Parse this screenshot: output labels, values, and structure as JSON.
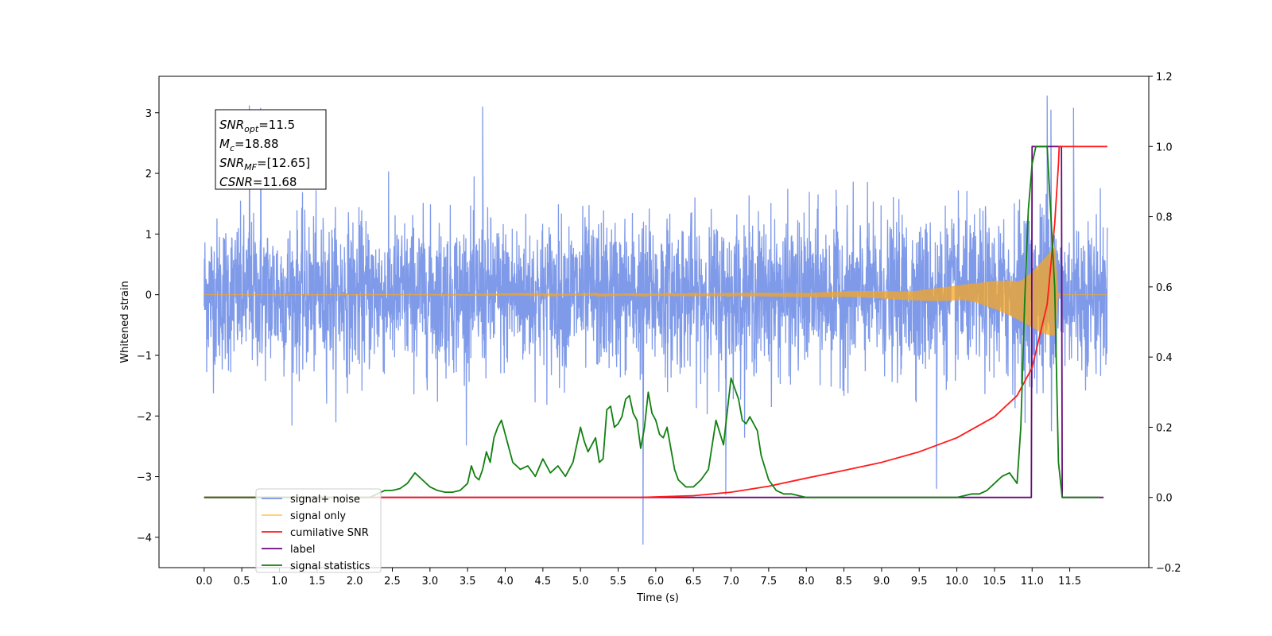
{
  "chart_data": {
    "type": "line",
    "xlabel": "Time (s)",
    "ylabel": "Whitened strain",
    "xlim": [
      -0.6,
      12.55
    ],
    "ylim": [
      -4.5,
      3.6
    ],
    "y2lim": [
      -0.2,
      1.2
    ],
    "x_ticks": [
      0.0,
      0.5,
      1.0,
      1.5,
      2.0,
      2.5,
      3.0,
      3.5,
      4.0,
      4.5,
      5.0,
      5.5,
      6.0,
      6.5,
      7.0,
      7.5,
      8.0,
      8.5,
      9.0,
      9.5,
      10.0,
      10.5,
      11.0,
      11.5
    ],
    "x_tick_labels": [
      "0.0",
      "0.5",
      "1.0",
      "1.5",
      "2.0",
      "2.5",
      "3.0",
      "3.5",
      "4.0",
      "4.5",
      "5.0",
      "5.5",
      "6.0",
      "6.5",
      "7.0",
      "7.5",
      "8.0",
      "8.5",
      "9.0",
      "9.5",
      "10.0",
      "10.5",
      "11.0",
      "11.5"
    ],
    "y_ticks": [
      -4,
      -3,
      -2,
      -1,
      0,
      1,
      2,
      3
    ],
    "y_tick_labels": [
      "−4",
      "−3",
      "−2",
      "−1",
      "0",
      "1",
      "2",
      "3"
    ],
    "y2_ticks": [
      -0.2,
      0.0,
      0.2,
      0.4,
      0.6,
      0.8,
      1.0,
      1.2
    ],
    "y2_tick_labels": [
      "−0.2",
      "0.0",
      "0.2",
      "0.4",
      "0.6",
      "0.8",
      "1.0",
      "1.2"
    ],
    "grid": false,
    "legend_position": "lower-left",
    "annotation": [
      {
        "base": "SNR",
        "sub": "opt",
        "value": "=11.5"
      },
      {
        "base": "M",
        "sub": "c",
        "value": "=18.88"
      },
      {
        "base": "SNR",
        "sub": "MF",
        "value": "=[12.65]"
      },
      {
        "base": "CSNR",
        "sub": "",
        "value": "=11.68"
      }
    ],
    "series": [
      {
        "name": "signal+ noise",
        "axis": "left",
        "color": "#7895e8",
        "x_range": [
          0.0,
          12.0
        ],
        "typical_envelope": [
          -1.5,
          1.5
        ],
        "note_points": [
          {
            "x": 0.6,
            "y": 3.12
          },
          {
            "x": 0.75,
            "y": 3.08
          },
          {
            "x": 3.7,
            "y": 3.1
          },
          {
            "x": 5.83,
            "y": -4.12
          },
          {
            "x": 6.93,
            "y": -3.3
          },
          {
            "x": 9.73,
            "y": -3.2
          },
          {
            "x": 11.2,
            "y": 3.28
          },
          {
            "x": 11.25,
            "y": 3.05
          },
          {
            "x": 11.55,
            "y": 3.08
          }
        ]
      },
      {
        "name": "signal only",
        "axis": "left",
        "color": "#f5a623",
        "x": [
          0.0,
          3.0,
          6.0,
          8.0,
          9.0,
          9.5,
          10.0,
          10.3,
          10.6,
          10.8,
          11.0,
          11.1,
          11.2,
          11.3,
          11.35,
          12.0
        ],
        "amplitude": [
          0.0,
          0.005,
          0.02,
          0.04,
          0.07,
          0.1,
          0.15,
          0.2,
          0.3,
          0.4,
          0.55,
          0.65,
          0.75,
          0.85,
          0.0,
          0.0
        ]
      },
      {
        "name": "cumilative SNR",
        "axis": "right",
        "color": "#ff1a1a",
        "x": [
          0.0,
          5.8,
          6.5,
          7.0,
          7.5,
          8.0,
          8.5,
          9.0,
          9.5,
          10.0,
          10.5,
          10.8,
          11.0,
          11.2,
          11.3,
          11.35,
          11.36,
          12.0
        ],
        "values": [
          0.0,
          0.0,
          0.005,
          0.015,
          0.032,
          0.055,
          0.077,
          0.1,
          0.13,
          0.17,
          0.23,
          0.29,
          0.37,
          0.55,
          0.78,
          0.95,
          1.0,
          1.0
        ]
      },
      {
        "name": "label",
        "axis": "right",
        "color": "#6a0a7a",
        "x": [
          0.0,
          10.99,
          11.0,
          11.39,
          11.4,
          11.95
        ],
        "values": [
          0.0,
          0.0,
          1.0,
          1.0,
          0.0,
          0.0
        ]
      },
      {
        "name": "signal statistics",
        "axis": "right",
        "color": "#118011",
        "x": [
          0.0,
          2.0,
          2.2,
          2.3,
          2.4,
          2.5,
          2.6,
          2.7,
          2.8,
          2.9,
          3.0,
          3.1,
          3.2,
          3.3,
          3.4,
          3.5,
          3.55,
          3.6,
          3.65,
          3.7,
          3.75,
          3.8,
          3.85,
          3.9,
          3.95,
          4.0,
          4.1,
          4.2,
          4.3,
          4.4,
          4.5,
          4.55,
          4.6,
          4.7,
          4.8,
          4.9,
          5.0,
          5.05,
          5.1,
          5.2,
          5.25,
          5.3,
          5.35,
          5.4,
          5.45,
          5.5,
          5.55,
          5.6,
          5.65,
          5.7,
          5.75,
          5.8,
          5.85,
          5.9,
          5.95,
          6.0,
          6.05,
          6.1,
          6.15,
          6.2,
          6.25,
          6.3,
          6.4,
          6.5,
          6.6,
          6.7,
          6.8,
          6.9,
          7.0,
          7.1,
          7.15,
          7.2,
          7.25,
          7.3,
          7.35,
          7.4,
          7.5,
          7.6,
          7.7,
          7.8,
          8.0,
          8.2,
          8.5,
          8.7,
          9.0,
          9.5,
          10.0,
          10.2,
          10.3,
          10.4,
          10.5,
          10.6,
          10.7,
          10.8,
          10.85,
          10.9,
          10.95,
          11.0,
          11.05,
          11.1,
          11.15,
          11.2,
          11.3,
          11.35,
          11.4,
          11.45,
          11.5,
          11.9
        ],
        "values": [
          0.0,
          0.0,
          0.0,
          0.01,
          0.02,
          0.02,
          0.025,
          0.04,
          0.07,
          0.05,
          0.03,
          0.02,
          0.015,
          0.015,
          0.02,
          0.04,
          0.09,
          0.06,
          0.05,
          0.08,
          0.13,
          0.1,
          0.17,
          0.2,
          0.22,
          0.18,
          0.1,
          0.08,
          0.09,
          0.06,
          0.11,
          0.09,
          0.07,
          0.09,
          0.06,
          0.1,
          0.2,
          0.16,
          0.13,
          0.17,
          0.1,
          0.11,
          0.25,
          0.26,
          0.2,
          0.21,
          0.23,
          0.28,
          0.29,
          0.24,
          0.22,
          0.14,
          0.2,
          0.3,
          0.24,
          0.22,
          0.18,
          0.17,
          0.2,
          0.14,
          0.08,
          0.05,
          0.03,
          0.03,
          0.05,
          0.08,
          0.22,
          0.15,
          0.34,
          0.28,
          0.22,
          0.21,
          0.23,
          0.21,
          0.19,
          0.12,
          0.05,
          0.02,
          0.01,
          0.01,
          0.0,
          0.0,
          0.0,
          0.0,
          0.0,
          0.0,
          0.0,
          0.01,
          0.01,
          0.02,
          0.04,
          0.06,
          0.07,
          0.04,
          0.2,
          0.55,
          0.82,
          0.95,
          1.0,
          1.0,
          1.0,
          1.0,
          0.6,
          0.1,
          0.0,
          0.0,
          0.0,
          0.0
        ]
      }
    ],
    "legend": [
      {
        "label": "signal+ noise",
        "color": "#7895e8"
      },
      {
        "label": "signal only",
        "color": "#ffc966"
      },
      {
        "label": "cumilative SNR",
        "color": "#ff1a1a"
      },
      {
        "label": "label",
        "color": "#6a0a7a"
      },
      {
        "label": "signal statistics",
        "color": "#118011"
      }
    ]
  }
}
